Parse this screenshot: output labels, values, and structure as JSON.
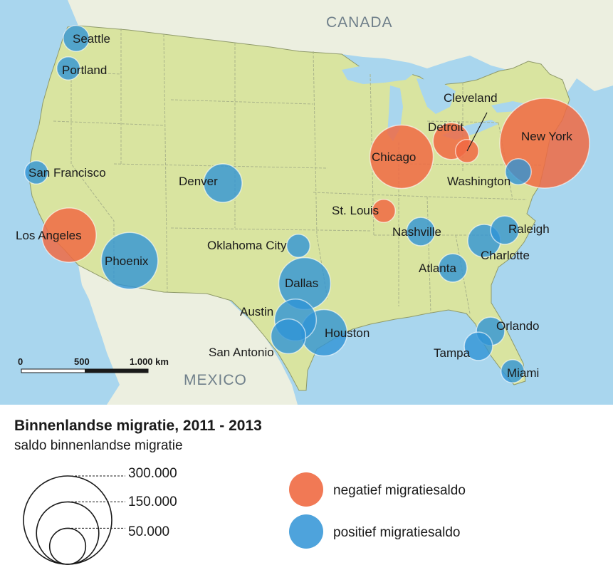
{
  "map": {
    "countries": [
      "CANADA",
      "MEXICO"
    ],
    "scale_bar": {
      "labels": [
        "0",
        "500",
        "1.000 km"
      ]
    }
  },
  "colors": {
    "ocean": "#a9d6ee",
    "land_us": "#d9e4a0",
    "land_other": "#ecefe0",
    "state_border": "#aab48a",
    "negative": "#f06a43",
    "positive": "#2f93d6"
  },
  "cities": [
    {
      "name": "Seattle",
      "type": "positive",
      "value": 25000
    },
    {
      "name": "Portland",
      "type": "positive",
      "value": 20000
    },
    {
      "name": "San Francisco",
      "type": "positive",
      "value": 20000
    },
    {
      "name": "Los Angeles",
      "type": "negative",
      "value": 110000
    },
    {
      "name": "Phoenix",
      "type": "positive",
      "value": 120000
    },
    {
      "name": "Denver",
      "type": "positive",
      "value": 55000
    },
    {
      "name": "Oklahoma City",
      "type": "positive",
      "value": 20000
    },
    {
      "name": "Dallas",
      "type": "positive",
      "value": 100000
    },
    {
      "name": "Austin",
      "type": "positive",
      "value": 65000
    },
    {
      "name": "Houston",
      "type": "positive",
      "value": 80000
    },
    {
      "name": "San Antonio",
      "type": "positive",
      "value": 45000
    },
    {
      "name": "Chicago",
      "type": "negative",
      "value": 150000
    },
    {
      "name": "Detroit",
      "type": "negative",
      "value": 50000
    },
    {
      "name": "Cleveland",
      "type": "negative",
      "value": 20000
    },
    {
      "name": "New York",
      "type": "negative",
      "value": 300000
    },
    {
      "name": "Washington",
      "type": "positive",
      "value": 25000
    },
    {
      "name": "St. Louis",
      "type": "negative",
      "value": 20000
    },
    {
      "name": "Nashville",
      "type": "positive",
      "value": 30000
    },
    {
      "name": "Raleigh",
      "type": "positive",
      "value": 30000
    },
    {
      "name": "Charlotte",
      "type": "positive",
      "value": 40000
    },
    {
      "name": "Atlanta",
      "type": "positive",
      "value": 30000
    },
    {
      "name": "Orlando",
      "type": "positive",
      "value": 30000
    },
    {
      "name": "Tampa",
      "type": "positive",
      "value": 30000
    },
    {
      "name": "Miami",
      "type": "positive",
      "value": 20000
    }
  ],
  "legend": {
    "title": "Binnenlandse migratie, 2011 - 2013",
    "subtitle": "saldo binnenlandse migratie",
    "size_values": [
      "300.000",
      "150.000",
      "50.000"
    ],
    "negative_label": "negatief migratiesaldo",
    "positive_label": "positief migratiesaldo"
  }
}
